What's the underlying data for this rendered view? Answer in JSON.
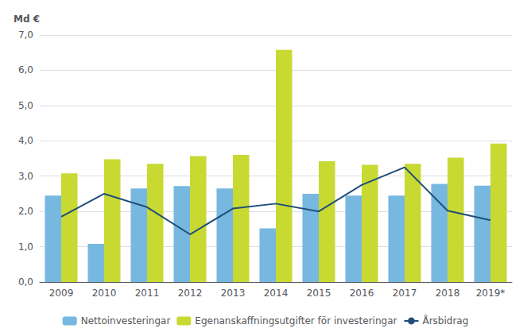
{
  "chart_data": {
    "type": "bar",
    "ylabel": "Md €",
    "categories": [
      "2009",
      "2010",
      "2011",
      "2012",
      "2013",
      "2014",
      "2015",
      "2016",
      "2017",
      "2018",
      "2019*"
    ],
    "series": [
      {
        "name": "Nettoinvesteringar",
        "type": "bar",
        "color": "#76b8e0",
        "values": [
          2.45,
          1.08,
          2.65,
          2.72,
          2.65,
          1.52,
          2.5,
          2.45,
          2.45,
          2.78,
          2.73
        ]
      },
      {
        "name": "Egenanskaffningsutgifter för investeringar",
        "type": "bar",
        "color": "#c8d932",
        "values": [
          3.08,
          3.48,
          3.35,
          3.57,
          3.6,
          6.58,
          3.42,
          3.32,
          3.35,
          3.52,
          3.92
        ]
      },
      {
        "name": "Årsbidrag",
        "type": "line",
        "color": "#1f4e79",
        "values": [
          1.85,
          2.5,
          2.12,
          1.35,
          2.08,
          2.22,
          2.0,
          2.75,
          3.25,
          2.02,
          1.75
        ]
      }
    ],
    "ylim": [
      0,
      7.0
    ],
    "yticks": [
      {
        "value": 0.0,
        "label": "0,0"
      },
      {
        "value": 1.0,
        "label": "1,0"
      },
      {
        "value": 2.0,
        "label": "2,0"
      },
      {
        "value": 3.0,
        "label": "3,0"
      },
      {
        "value": 4.0,
        "label": "4,0"
      },
      {
        "value": 5.0,
        "label": "5,0"
      },
      {
        "value": 6.0,
        "label": "6,0"
      },
      {
        "value": 7.0,
        "label": "7,0"
      }
    ],
    "grid": true,
    "legend": "bottom"
  }
}
